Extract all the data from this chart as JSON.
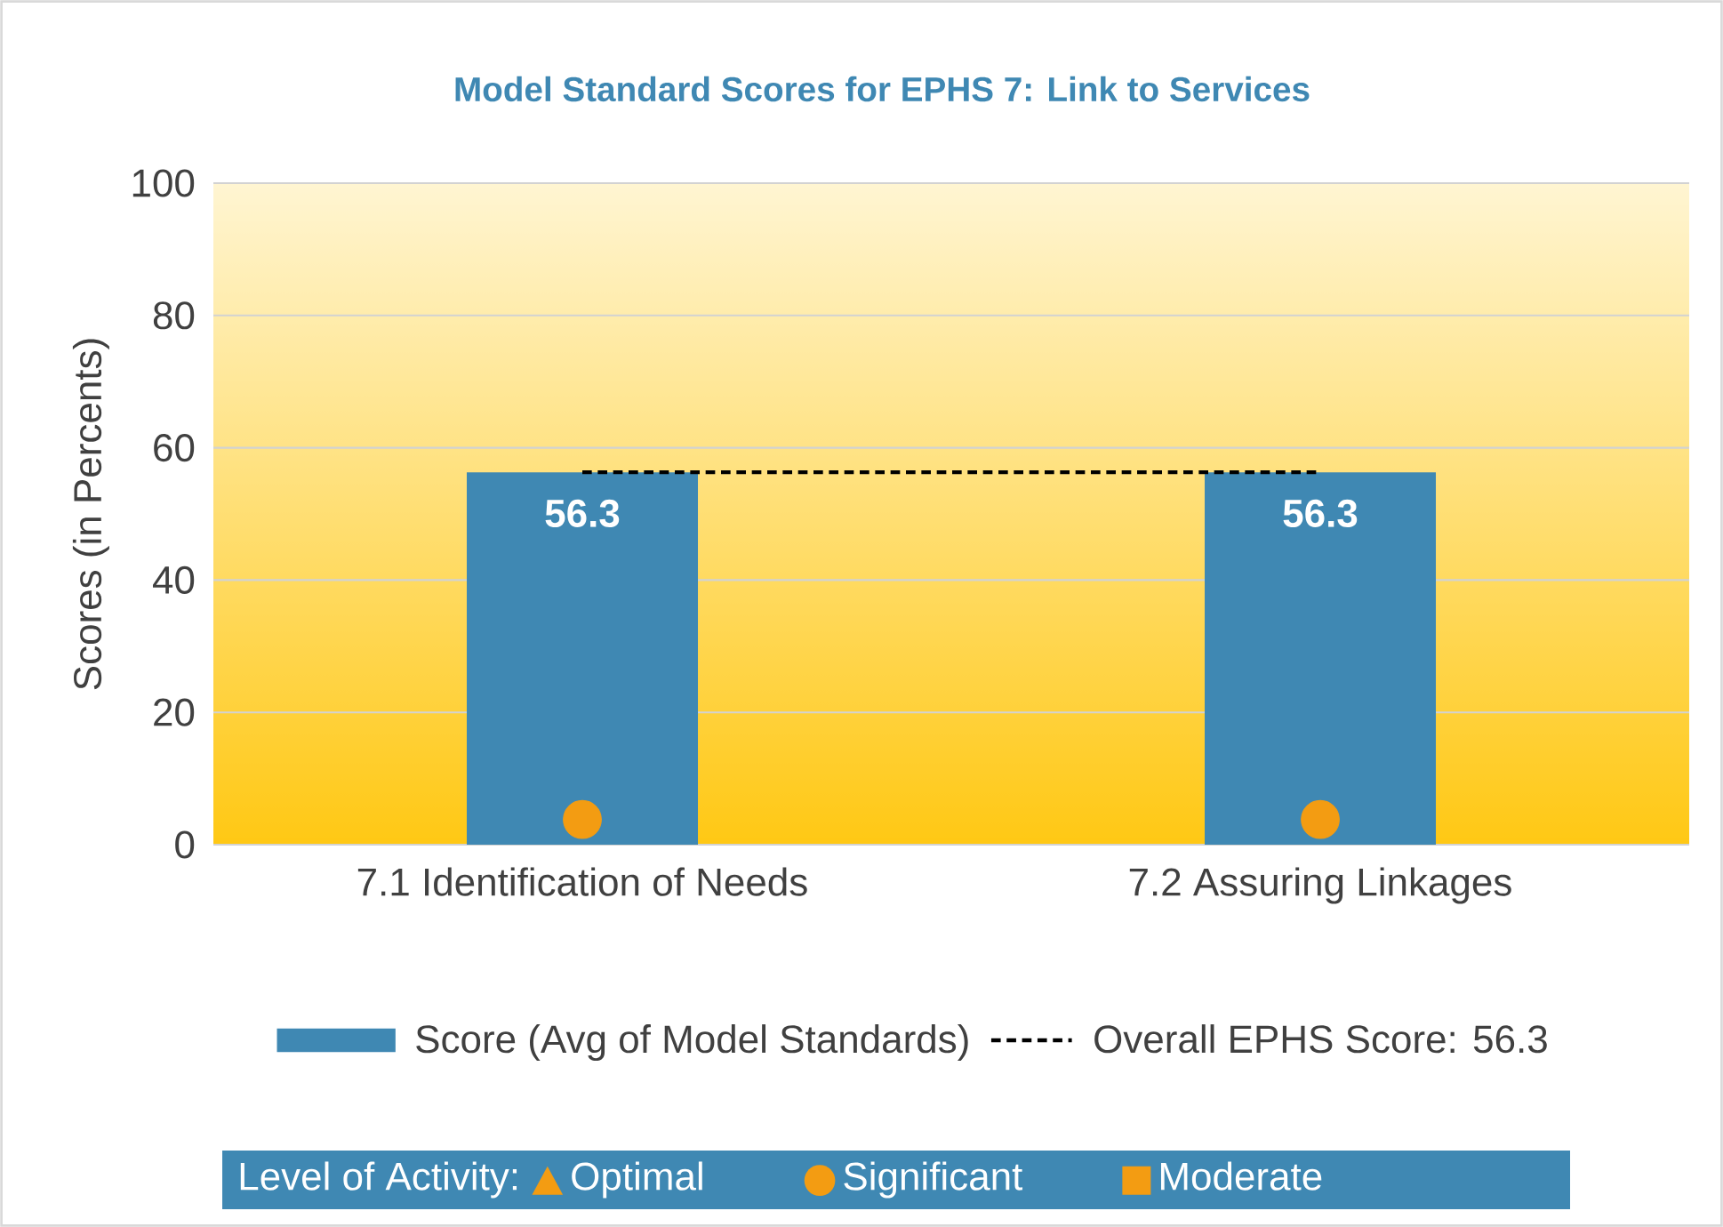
{
  "chart_data": {
    "type": "bar",
    "title": "Model Standard Scores for EPHS 7: Link to Services",
    "ylabel": "Scores (in Percents)",
    "legend_title": "Level of Activity:",
    "categories": [
      "7.1 Identification of Needs",
      "7.2 Assuring Linkages"
    ],
    "series": [
      {
        "name": "Score (Avg of Model Standards)",
        "color": "#3f88b3",
        "values": [
          56.3,
          56.3
        ],
        "value_labels": [
          "56.3",
          "56.3"
        ]
      },
      {
        "name": "Optimal",
        "type": "scatter",
        "marker": "triangle",
        "color": "#f39c12",
        "values": [
          null,
          null
        ]
      },
      {
        "name": "Significant",
        "type": "scatter",
        "marker": "circle",
        "color": "#f39c12",
        "x": [
          "7.1 Identification of Needs",
          "7.2 Assuring Linkages"
        ],
        "values": [
          3.8,
          3.8
        ]
      },
      {
        "name": "Moderate",
        "type": "scatter",
        "marker": "square",
        "color": "#f39c12",
        "values": [
          null,
          null
        ]
      }
    ],
    "ref_lines": [
      {
        "axis": "y",
        "value": 56.3,
        "label": "Overall EPHS Score: 56.3",
        "color": "#000000",
        "line_style": "dashed"
      }
    ],
    "ylim": [
      0,
      100
    ],
    "yticks": [
      0,
      20,
      40,
      60,
      80,
      100
    ],
    "grid": "y",
    "legend": "bottom"
  }
}
